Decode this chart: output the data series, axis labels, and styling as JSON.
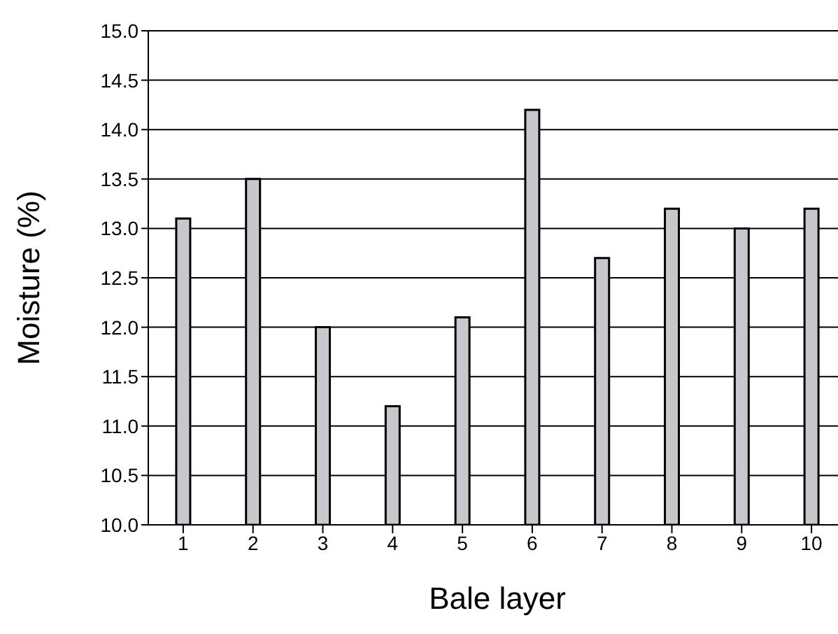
{
  "chart_data": {
    "type": "bar",
    "xlabel": "Bale layer",
    "ylabel": "Moisture (%)",
    "categories": [
      "1",
      "2",
      "3",
      "4",
      "5",
      "6",
      "7",
      "8",
      "9",
      "10"
    ],
    "values": [
      13.1,
      13.5,
      12.0,
      11.2,
      12.1,
      14.2,
      12.7,
      13.2,
      13.0,
      13.2
    ],
    "color": "#c8c8cc",
    "ylim": [
      10,
      15
    ],
    "yticks": [
      {
        "value": 10,
        "label": "10.0"
      },
      {
        "value": 10.5,
        "label": "10.5"
      },
      {
        "value": 11,
        "label": "11.0"
      },
      {
        "value": 11.5,
        "label": "11.5"
      },
      {
        "value": 12,
        "label": "12.0"
      },
      {
        "value": 12.5,
        "label": "12.5"
      },
      {
        "value": 13,
        "label": "13.0"
      },
      {
        "value": 13.5,
        "label": "13.5"
      },
      {
        "value": 14,
        "label": "14.0"
      },
      {
        "value": 14.5,
        "label": "14.5"
      },
      {
        "value": 15,
        "label": "15.0"
      }
    ],
    "grid": "y",
    "legend": false
  }
}
